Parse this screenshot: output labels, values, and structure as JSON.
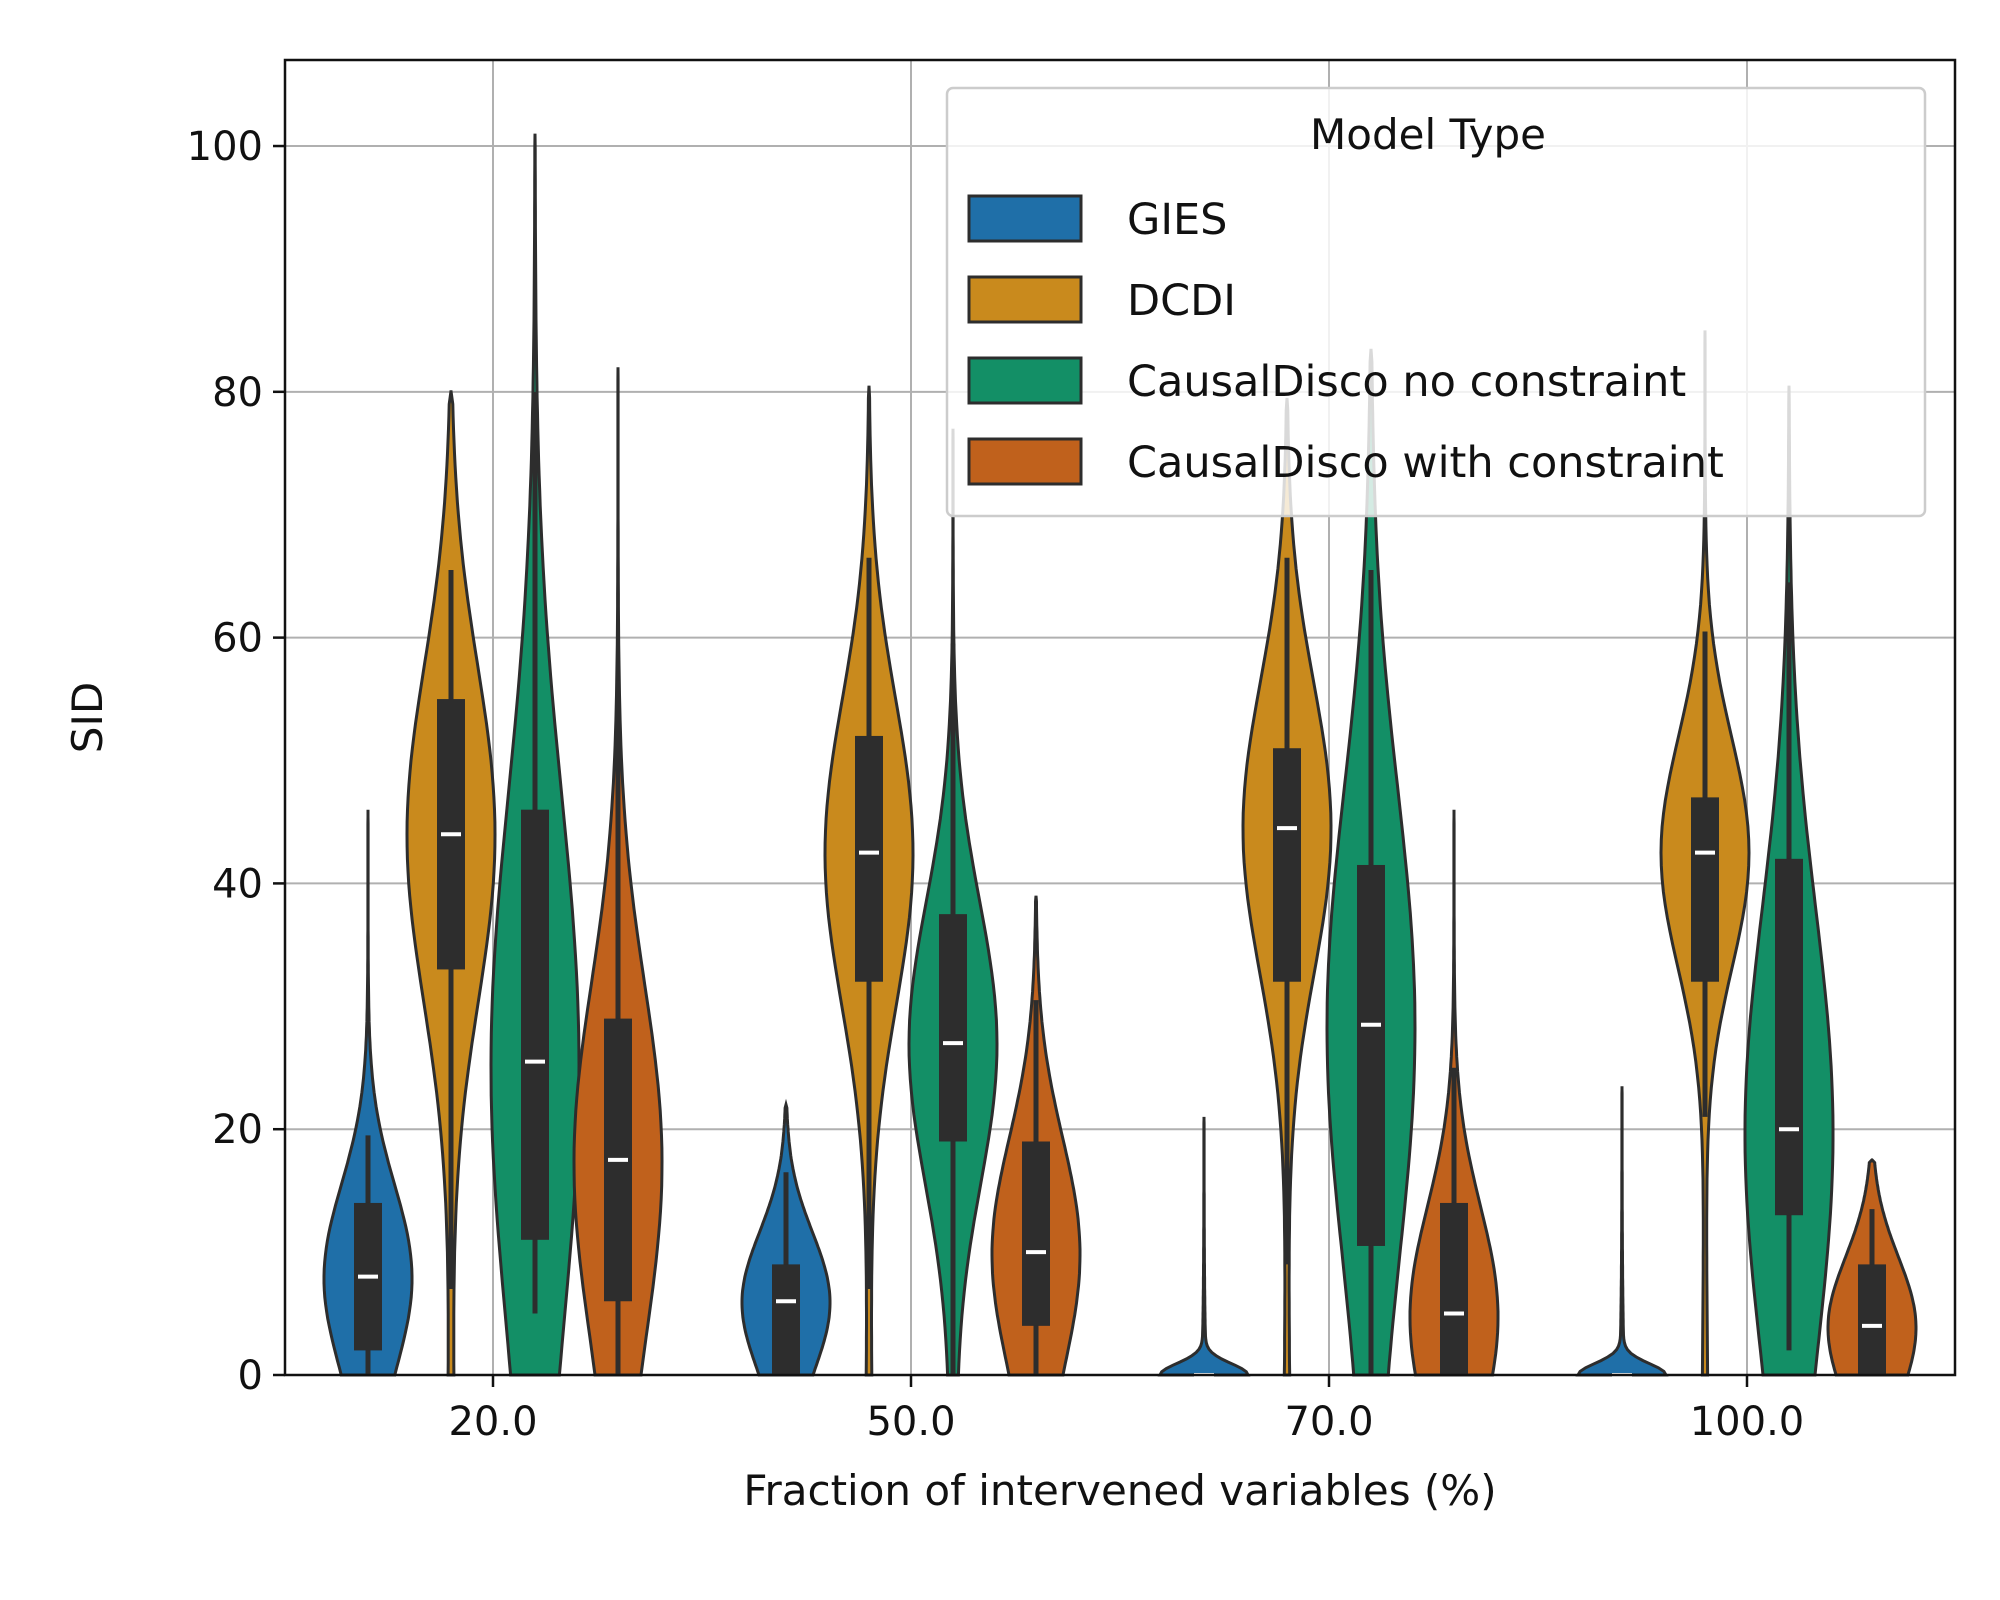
{
  "chart_data": {
    "type": "violin",
    "xlabel": "Fraction of intervened variables (%)",
    "ylabel": "SID",
    "ylim": [
      0,
      107
    ],
    "yticks": [
      0,
      20,
      40,
      60,
      80,
      100
    ],
    "grid": true,
    "categories": [
      "20.0",
      "50.0",
      "70.0",
      "100.0"
    ],
    "legend": {
      "title": "Model Type",
      "placement": "top-right"
    },
    "series": [
      {
        "name": "GIES",
        "color": "#1f6fa8",
        "stats": [
          {
            "min": 0,
            "q1": 2,
            "median": 8,
            "q3": 14,
            "max": 46,
            "whisker_lo": 0,
            "whisker_hi": 19.5
          },
          {
            "min": 0,
            "q1": 0,
            "median": 6,
            "q3": 9,
            "max": 22,
            "whisker_lo": 0,
            "whisker_hi": 16.5
          },
          {
            "min": 0,
            "q1": 0,
            "median": 0,
            "q3": 0,
            "max": 21,
            "whisker_lo": 0,
            "whisker_hi": 0
          },
          {
            "min": 0,
            "q1": 0,
            "median": 0,
            "q3": 0,
            "max": 23.5,
            "whisker_lo": 0,
            "whisker_hi": 0
          }
        ]
      },
      {
        "name": "DCDI",
        "color": "#c98a1d",
        "stats": [
          {
            "min": 0,
            "q1": 33,
            "median": 44,
            "q3": 55,
            "max": 80,
            "whisker_lo": 7,
            "whisker_hi": 65.5
          },
          {
            "min": 0,
            "q1": 32,
            "median": 42.5,
            "q3": 52,
            "max": 80.5,
            "whisker_lo": 7,
            "whisker_hi": 66.5
          },
          {
            "min": 0,
            "q1": 32,
            "median": 44.5,
            "q3": 51,
            "max": 79.5,
            "whisker_lo": 9,
            "whisker_hi": 66.5
          },
          {
            "min": 0,
            "q1": 32,
            "median": 42.5,
            "q3": 47,
            "max": 85,
            "whisker_lo": 21,
            "whisker_hi": 60.5
          }
        ]
      },
      {
        "name": "CausalDisco no constraint",
        "color": "#138f66",
        "stats": [
          {
            "min": 0,
            "q1": 11,
            "median": 25.5,
            "q3": 46,
            "max": 101,
            "whisker_lo": 5,
            "whisker_hi": 80
          },
          {
            "min": 0,
            "q1": 19,
            "median": 27,
            "q3": 37.5,
            "max": 77,
            "whisker_lo": 0,
            "whisker_hi": 59.5
          },
          {
            "min": 0,
            "q1": 10.5,
            "median": 28.5,
            "q3": 41.5,
            "max": 83.5,
            "whisker_lo": 0,
            "whisker_hi": 65.5
          },
          {
            "min": 0,
            "q1": 13,
            "median": 20,
            "q3": 42,
            "max": 80.5,
            "whisker_lo": 2,
            "whisker_hi": 64.5
          }
        ]
      },
      {
        "name": "CausalDisco with constraint",
        "color": "#c0611c",
        "stats": [
          {
            "min": 0,
            "q1": 6,
            "median": 17.5,
            "q3": 29,
            "max": 82,
            "whisker_lo": 0,
            "whisker_hi": 56.5
          },
          {
            "min": 0,
            "q1": 4,
            "median": 10,
            "q3": 19,
            "max": 39,
            "whisker_lo": 0,
            "whisker_hi": 30.5
          },
          {
            "min": 0,
            "q1": 0,
            "median": 5,
            "q3": 14,
            "max": 46,
            "whisker_lo": 0,
            "whisker_hi": 25
          },
          {
            "min": 0,
            "q1": 0,
            "median": 4,
            "q3": 9,
            "max": 17.5,
            "whisker_lo": 0,
            "whisker_hi": 13.5
          }
        ]
      }
    ]
  }
}
